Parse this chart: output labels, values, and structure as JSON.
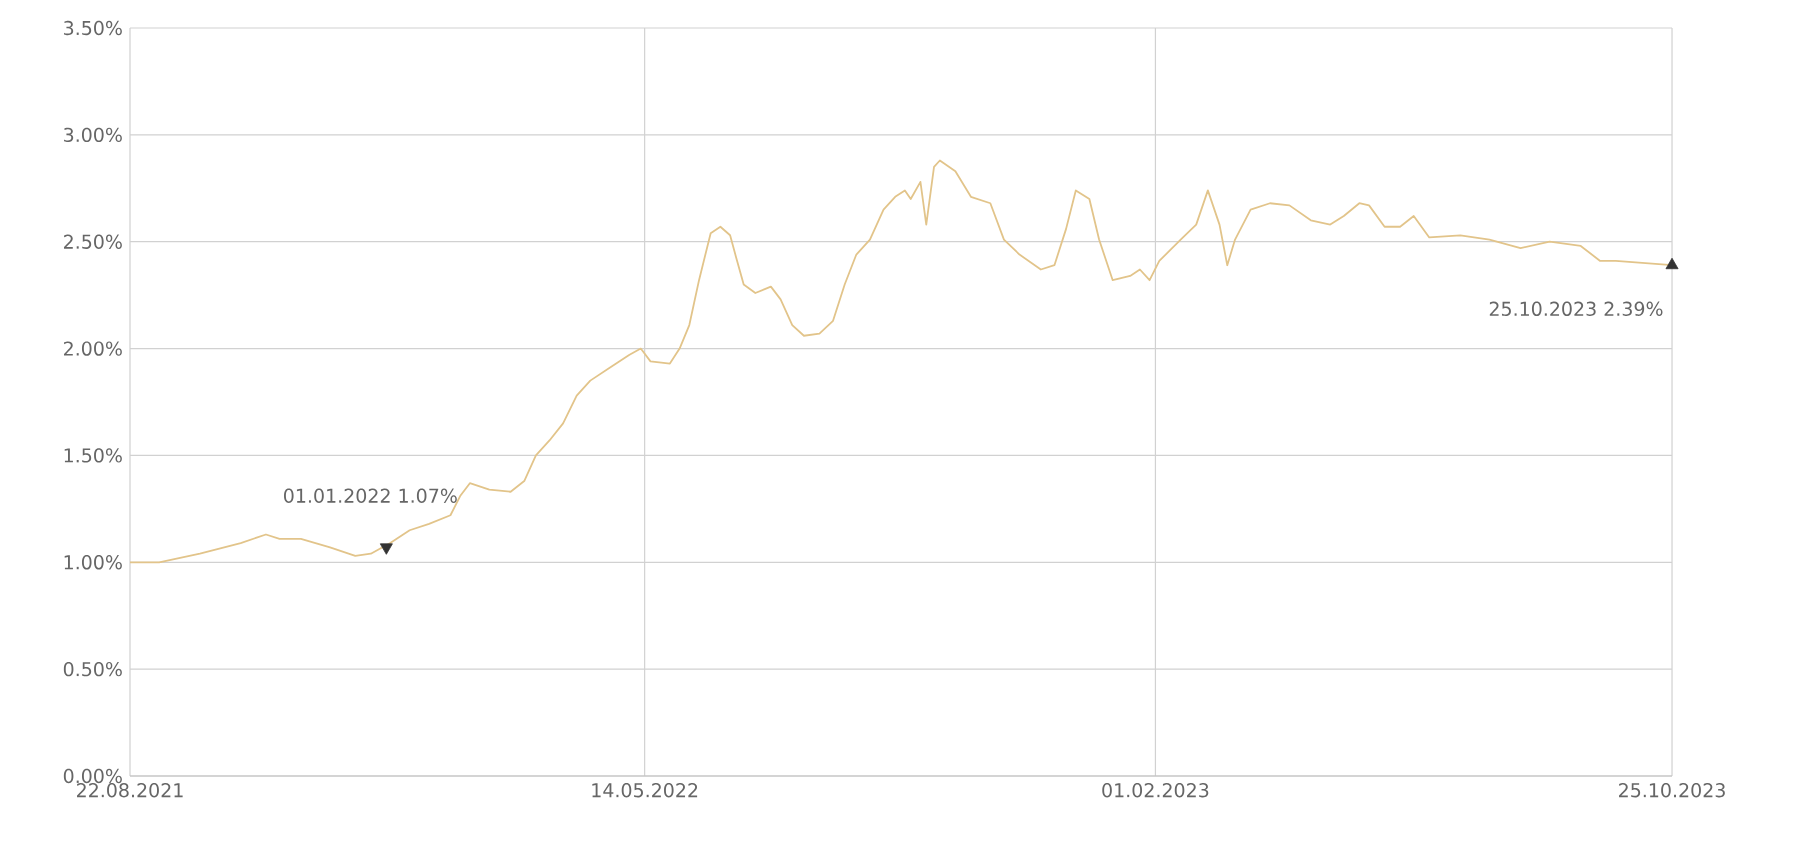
{
  "chart_data": {
    "type": "line",
    "x": [
      "2021-08-22",
      "2021-09-06",
      "2021-09-27",
      "2021-10-18",
      "2021-10-31",
      "2021-11-07",
      "2021-11-18",
      "2021-12-03",
      "2021-12-16",
      "2021-12-24",
      "2022-01-03",
      "2022-01-13",
      "2022-01-23",
      "2022-02-03",
      "2022-02-08",
      "2022-02-13",
      "2022-02-23",
      "2022-03-06",
      "2022-03-13",
      "2022-03-19",
      "2022-03-26",
      "2022-04-02",
      "2022-04-09",
      "2022-04-16",
      "2022-04-26",
      "2022-05-06",
      "2022-05-12",
      "2022-05-17",
      "2022-05-27",
      "2022-06-01",
      "2022-06-06",
      "2022-06-11",
      "2022-06-17",
      "2022-06-22",
      "2022-06-27",
      "2022-06-30",
      "2022-07-04",
      "2022-07-10",
      "2022-07-18",
      "2022-07-23",
      "2022-07-29",
      "2022-08-04",
      "2022-08-12",
      "2022-08-19",
      "2022-08-25",
      "2022-08-31",
      "2022-09-07",
      "2022-09-14",
      "2022-09-20",
      "2022-09-25",
      "2022-09-28",
      "2022-10-03",
      "2022-10-06",
      "2022-10-10",
      "2022-10-13",
      "2022-10-21",
      "2022-10-29",
      "2022-11-08",
      "2022-11-15",
      "2022-11-23",
      "2022-12-04",
      "2022-12-11",
      "2022-12-17",
      "2022-12-22",
      "2022-12-29",
      "2023-01-03",
      "2023-01-10",
      "2023-01-19",
      "2023-01-24",
      "2023-01-29",
      "2023-02-03",
      "2023-02-14",
      "2023-02-22",
      "2023-02-28",
      "2023-03-06",
      "2023-03-10",
      "2023-03-14",
      "2023-03-22",
      "2023-04-01",
      "2023-04-11",
      "2023-04-22",
      "2023-05-02",
      "2023-05-09",
      "2023-05-17",
      "2023-05-22",
      "2023-05-30",
      "2023-06-07",
      "2023-06-14",
      "2023-06-22",
      "2023-07-08",
      "2023-07-23",
      "2023-08-08",
      "2023-08-23",
      "2023-09-08",
      "2023-09-18",
      "2023-09-26",
      "2023-10-25"
    ],
    "series": [
      {
        "color": "#e2c48a",
        "values": [
          1.0,
          1.0,
          1.04,
          1.09,
          1.13,
          1.11,
          1.11,
          1.07,
          1.03,
          1.04,
          1.09,
          1.15,
          1.18,
          1.22,
          1.31,
          1.37,
          1.34,
          1.33,
          1.38,
          1.5,
          1.57,
          1.65,
          1.78,
          1.85,
          1.91,
          1.97,
          2.0,
          1.94,
          1.93,
          2.0,
          2.11,
          2.32,
          2.54,
          2.57,
          2.53,
          2.43,
          2.3,
          2.26,
          2.29,
          2.23,
          2.11,
          2.06,
          2.07,
          2.13,
          2.3,
          2.44,
          2.51,
          2.65,
          2.71,
          2.74,
          2.7,
          2.78,
          2.58,
          2.85,
          2.88,
          2.83,
          2.71,
          2.68,
          2.51,
          2.44,
          2.37,
          2.39,
          2.56,
          2.74,
          2.7,
          2.51,
          2.32,
          2.34,
          2.37,
          2.32,
          2.41,
          2.51,
          2.58,
          2.74,
          2.58,
          2.39,
          2.51,
          2.65,
          2.68,
          2.67,
          2.6,
          2.58,
          2.62,
          2.68,
          2.67,
          2.57,
          2.57,
          2.62,
          2.52,
          2.53,
          2.51,
          2.47,
          2.5,
          2.48,
          2.41,
          2.41,
          2.39
        ]
      },
      {
        "type": "scatter",
        "color": "#333333",
        "marker": "triangle",
        "x": [
          "2022-01-01",
          "2023-10-25"
        ],
        "values": [
          1.07,
          2.39
        ]
      }
    ],
    "xlim": [
      "2021-08-22",
      "2023-10-25"
    ],
    "xticks": [
      {
        "value": "2021-08-22",
        "label": "22.08.2021"
      },
      {
        "value": "2022-05-14",
        "label": "14.05.2022"
      },
      {
        "value": "2023-02-01",
        "label": "01.02.2023"
      },
      {
        "value": "2023-10-25",
        "label": "25.10.2023"
      }
    ],
    "ylim": [
      0,
      3.5
    ],
    "yticks": [
      {
        "value": 0,
        "label": "0.00%"
      },
      {
        "value": 0.5,
        "label": "0.50%"
      },
      {
        "value": 1,
        "label": "1.00%"
      },
      {
        "value": 1.5,
        "label": "1.50%"
      },
      {
        "value": 2,
        "label": "2.00%"
      },
      {
        "value": 2.5,
        "label": "2.50%"
      },
      {
        "value": 3,
        "label": "3.00%"
      },
      {
        "value": 3.5,
        "label": "3.50%"
      }
    ],
    "grid": true,
    "annotations": [
      {
        "text": "01.01.2022 1.07%",
        "x": "2022-01-01",
        "y": 1.07
      },
      {
        "text": "25.10.2023 2.39%",
        "x": "2023-10-25",
        "y": 2.39
      }
    ]
  }
}
